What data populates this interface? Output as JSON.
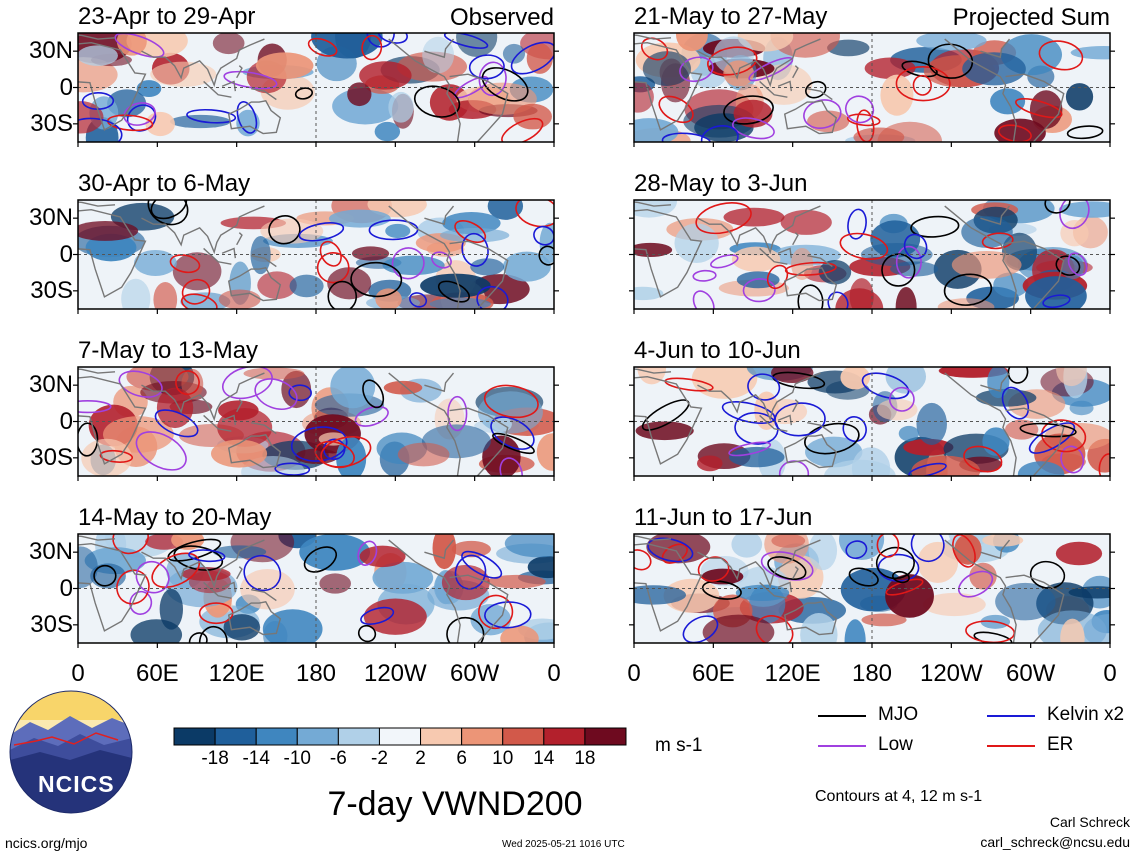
{
  "chart_data": {
    "type": "heatmap",
    "title": "7-day VWND200",
    "units": "m s-1",
    "columns": [
      {
        "label": "Observed",
        "panels": [
          "23-Apr to 29-Apr",
          "30-Apr to 6-May",
          "7-May to 13-May",
          "14-May to 20-May"
        ]
      },
      {
        "label": "Projected Sum",
        "panels": [
          "21-May to 27-May",
          "28-May to 3-Jun",
          "4-Jun to 10-Jun",
          "11-Jun to 17-Jun"
        ]
      }
    ],
    "y_ticks": [
      "30N",
      "0",
      "30S"
    ],
    "x_ticks": [
      "0",
      "60E",
      "120E",
      "180",
      "120W",
      "60W",
      "0"
    ],
    "colorbar": {
      "ticks": [
        "-18",
        "-14",
        "-10",
        "-6",
        "-2",
        "2",
        "6",
        "10",
        "14",
        "18"
      ],
      "colors": [
        "#0b3a66",
        "#1f5f9b",
        "#3f86bf",
        "#74aad5",
        "#b0d0e8",
        "#f2f6fa",
        "#f7c9b0",
        "#ec9577",
        "#d2594a",
        "#b3202c",
        "#6e0a1f"
      ]
    },
    "legend": [
      {
        "name": "MJO",
        "color": "#000000"
      },
      {
        "name": "Kelvin x2",
        "color": "#1a1ad6"
      },
      {
        "name": "Low",
        "color": "#a040e0"
      },
      {
        "name": "ER",
        "color": "#e01818"
      }
    ],
    "contours_note": "Contours at 4, 12 m s-1"
  },
  "footer": {
    "left": "ncics.org/mjo",
    "timestamp": "Wed 2025-05-21 1016 UTC",
    "author": "Carl Schreck",
    "email": "carl_schreck@ncsu.edu"
  },
  "logo": {
    "text": "NCICS"
  }
}
